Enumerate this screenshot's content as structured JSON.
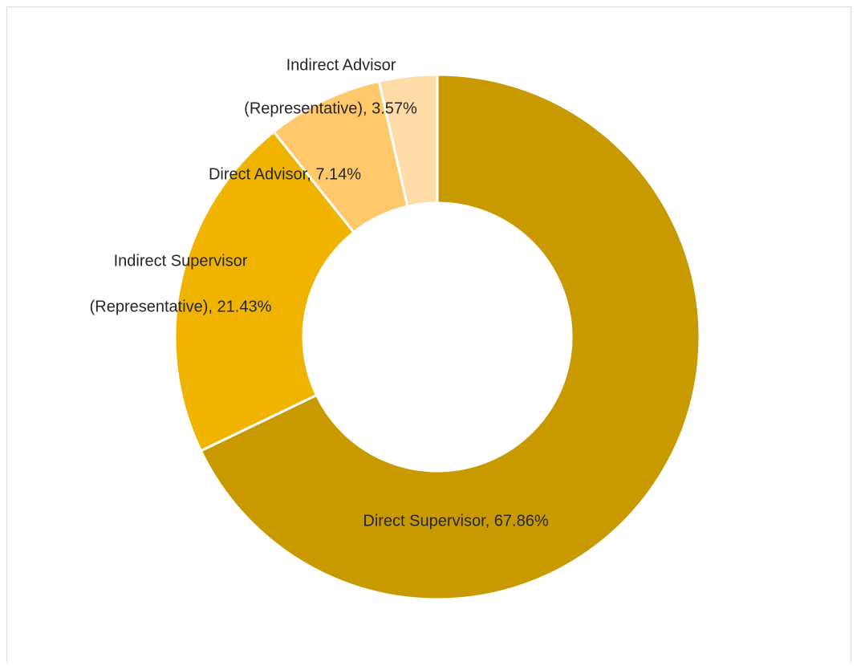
{
  "chart_data": {
    "type": "donut",
    "values": [
      67.86,
      21.43,
      7.14,
      3.57
    ],
    "value_labels": [
      [
        "Direct Supervisor, 67.86%"
      ],
      [
        "Indirect Supervisor",
        "(Representative), 21.43%"
      ],
      [
        "Direct Advisor, 7.14%"
      ],
      [
        "Indirect Advisor",
        "(Representative), 3.57%"
      ]
    ],
    "colors": [
      "#C89A00",
      "#F0B400",
      "#FFC96B",
      "#FFDBA8"
    ],
    "start_angle": 90,
    "direction": "clockwise"
  }
}
